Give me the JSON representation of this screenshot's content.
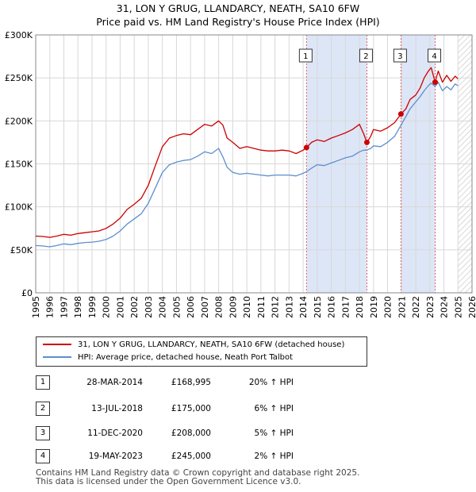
{
  "title": {
    "line1": "31, LON Y GRUG, LLANDARCY, NEATH, SA10 6FW",
    "line2": "Price paid vs. HM Land Registry's House Price Index (HPI)"
  },
  "colors": {
    "property": "#cc0000",
    "hpi": "#5b8fcf",
    "shade": "#dde6f7",
    "vline": "#e06060",
    "hatch": "#cccccc"
  },
  "chart_data": {
    "type": "line",
    "title": "Price paid vs. HM Land Registry's House Price Index (HPI)",
    "xlabel": "",
    "ylabel": "",
    "xlim": [
      1995,
      2026
    ],
    "ylim": [
      0,
      300000
    ],
    "y_ticks": [
      0,
      50000,
      100000,
      150000,
      200000,
      250000,
      300000
    ],
    "y_tick_labels": [
      "£0",
      "£50K",
      "£100K",
      "£150K",
      "£200K",
      "£250K",
      "£300K"
    ],
    "x_ticks": [
      1995,
      1996,
      1997,
      1998,
      1999,
      2000,
      2001,
      2002,
      2003,
      2004,
      2005,
      2006,
      2007,
      2008,
      2009,
      2010,
      2011,
      2012,
      2013,
      2014,
      2015,
      2016,
      2017,
      2018,
      2019,
      2020,
      2021,
      2022,
      2023,
      2024,
      2025,
      2026
    ],
    "grid": true,
    "future_hatch_from": 2025.0,
    "shaded_spans": [
      [
        2014.24,
        2018.53
      ],
      [
        2020.95,
        2023.38
      ]
    ],
    "series": [
      {
        "name": "31, LON Y GRUG, LLANDARCY, NEATH, SA10 6FW (detached house)",
        "x": [
          1995,
          1995.5,
          1996,
          1996.5,
          1997,
          1997.5,
          1998,
          1998.5,
          1999,
          1999.5,
          2000,
          2000.5,
          2001,
          2001.5,
          2002,
          2002.5,
          2003,
          2003.5,
          2004,
          2004.5,
          2005,
          2005.5,
          2006,
          2006.5,
          2007,
          2007.5,
          2008,
          2008.3,
          2008.6,
          2009,
          2009.5,
          2010,
          2010.5,
          2011,
          2011.5,
          2012,
          2012.5,
          2013,
          2013.5,
          2014,
          2014.24,
          2014.6,
          2015,
          2015.5,
          2016,
          2016.5,
          2017,
          2017.5,
          2018,
          2018.3,
          2018.53,
          2018.8,
          2019,
          2019.5,
          2020,
          2020.5,
          2020.95,
          2021.3,
          2021.6,
          2022,
          2022.3,
          2022.6,
          2022.9,
          2023.1,
          2023.38,
          2023.6,
          2023.9,
          2024.2,
          2024.5,
          2024.8,
          2025
        ],
        "values": [
          66000,
          65500,
          64500,
          66000,
          68000,
          67000,
          69000,
          70000,
          71000,
          72000,
          75000,
          80000,
          87000,
          97000,
          103000,
          110000,
          125000,
          148000,
          170000,
          180000,
          183000,
          185000,
          184000,
          190000,
          196000,
          194000,
          200000,
          195000,
          180000,
          175000,
          168000,
          170000,
          168000,
          166000,
          165000,
          165000,
          166000,
          165000,
          162000,
          166000,
          168995,
          175000,
          178000,
          176000,
          180000,
          183000,
          186000,
          190000,
          196000,
          185000,
          175000,
          182000,
          190000,
          188000,
          192000,
          198000,
          208000,
          214000,
          225000,
          230000,
          238000,
          250000,
          258000,
          262000,
          245000,
          258000,
          245000,
          253000,
          246000,
          252000,
          249000
        ]
      },
      {
        "name": "HPI: Average price, detached house, Neath Port Talbot",
        "x": [
          1995,
          1995.5,
          1996,
          1996.5,
          1997,
          1997.5,
          1998,
          1998.5,
          1999,
          1999.5,
          2000,
          2000.5,
          2001,
          2001.5,
          2002,
          2002.5,
          2003,
          2003.5,
          2004,
          2004.5,
          2005,
          2005.5,
          2006,
          2006.5,
          2007,
          2007.5,
          2008,
          2008.3,
          2008.6,
          2009,
          2009.5,
          2010,
          2010.5,
          2011,
          2011.5,
          2012,
          2012.5,
          2013,
          2013.5,
          2014,
          2014.24,
          2014.6,
          2015,
          2015.5,
          2016,
          2016.5,
          2017,
          2017.5,
          2018,
          2018.3,
          2018.53,
          2018.8,
          2019,
          2019.5,
          2020,
          2020.5,
          2020.95,
          2021.3,
          2021.6,
          2022,
          2022.3,
          2022.6,
          2022.9,
          2023.1,
          2023.38,
          2023.6,
          2023.9,
          2024.2,
          2024.5,
          2024.8,
          2025
        ],
        "values": [
          55000,
          54500,
          53500,
          55000,
          57000,
          56000,
          57500,
          58500,
          59000,
          60000,
          62000,
          66000,
          72000,
          80000,
          86000,
          92000,
          104000,
          122000,
          140000,
          149000,
          152000,
          154000,
          155000,
          159000,
          164000,
          162000,
          168000,
          158000,
          146000,
          140000,
          138000,
          139000,
          138000,
          137000,
          136000,
          137000,
          137000,
          137000,
          136000,
          139000,
          141000,
          145000,
          149000,
          148000,
          151000,
          154000,
          157000,
          159000,
          164000,
          166000,
          166000,
          168000,
          171000,
          170000,
          175000,
          182000,
          195000,
          205000,
          214000,
          222000,
          228000,
          235000,
          241000,
          244000,
          240000,
          245000,
          235000,
          240000,
          236000,
          243000,
          241000
        ]
      }
    ],
    "sales": [
      {
        "num": "1",
        "x": 2014.24,
        "value": 168995
      },
      {
        "num": "2",
        "x": 2018.53,
        "value": 175000
      },
      {
        "num": "3",
        "x": 2020.95,
        "value": 208000
      },
      {
        "num": "4",
        "x": 2023.38,
        "value": 245000
      }
    ]
  },
  "legend": {
    "property_label": "31, LON Y GRUG, LLANDARCY, NEATH, SA10 6FW (detached house)",
    "hpi_label": "HPI: Average price, detached house, Neath Port Talbot"
  },
  "sales_table": [
    {
      "num": "1",
      "date": "28-MAR-2014",
      "price": "£168,995",
      "delta": "20% ↑ HPI"
    },
    {
      "num": "2",
      "date": "13-JUL-2018",
      "price": "£175,000",
      "delta": "6% ↑ HPI"
    },
    {
      "num": "3",
      "date": "11-DEC-2020",
      "price": "£208,000",
      "delta": "5% ↑ HPI"
    },
    {
      "num": "4",
      "date": "19-MAY-2023",
      "price": "£245,000",
      "delta": "2% ↑ HPI"
    }
  ],
  "footer": {
    "line1": "Contains HM Land Registry data © Crown copyright and database right 2025.",
    "line2": "This data is licensed under the Open Government Licence v3.0."
  }
}
